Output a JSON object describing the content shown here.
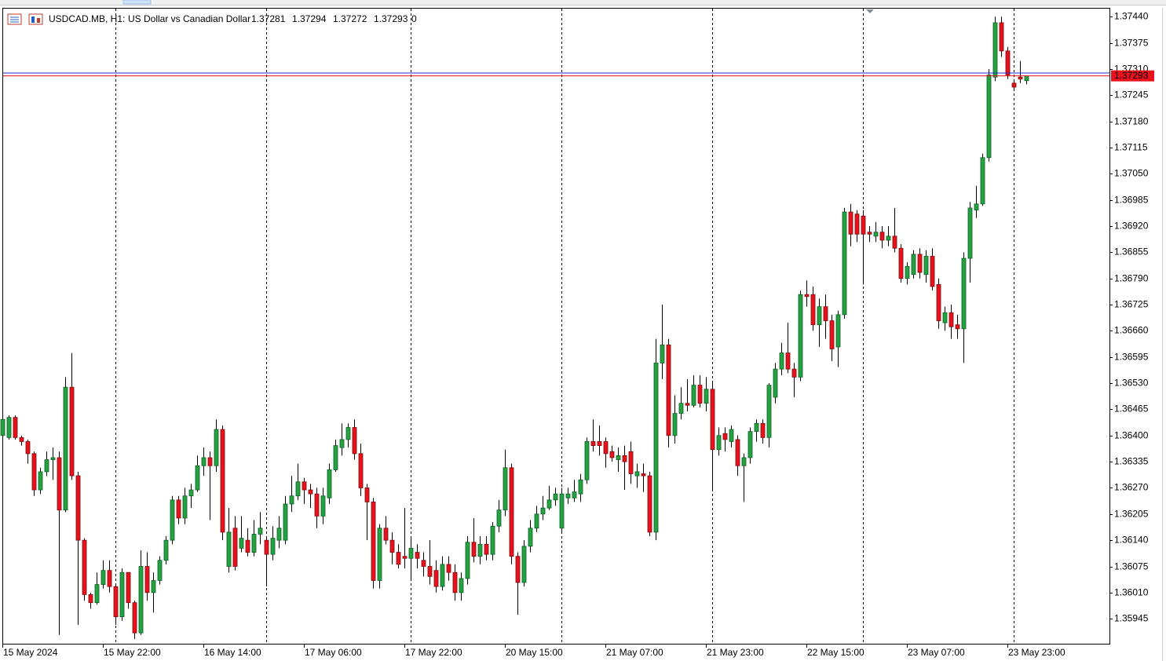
{
  "chart_data": {
    "type": "candlestick",
    "symbol": "USDCAD.MB, H1:",
    "description": "US Dollar vs Canadian Dollar",
    "header_extra": 0,
    "up_color": "#26a245",
    "down_color": "#e8111c",
    "ask_line": 1.373,
    "ask_color": "#1f2ed8",
    "bid_color": "#e8111c",
    "ylim": [
      1.35883,
      1.37458
    ],
    "yticks": [
      {
        "value": 1.3744,
        "label": "1.37440"
      },
      {
        "value": 1.37375,
        "label": "1.37375"
      },
      {
        "value": 1.3731,
        "label": "1.37310"
      },
      {
        "value": 1.37245,
        "label": "1.37245"
      },
      {
        "value": 1.3718,
        "label": "1.37180"
      },
      {
        "value": 1.37115,
        "label": "1.37115"
      },
      {
        "value": 1.3705,
        "label": "1.37050"
      },
      {
        "value": 1.36985,
        "label": "1.36985"
      },
      {
        "value": 1.3692,
        "label": "1.36920"
      },
      {
        "value": 1.36855,
        "label": "1.36855"
      },
      {
        "value": 1.3679,
        "label": "1.36790"
      },
      {
        "value": 1.36725,
        "label": "1.36725"
      },
      {
        "value": 1.3666,
        "label": "1.36660"
      },
      {
        "value": 1.36595,
        "label": "1.36595"
      },
      {
        "value": 1.3653,
        "label": "1.36530"
      },
      {
        "value": 1.36465,
        "label": "1.36465"
      },
      {
        "value": 1.364,
        "label": "1.36400"
      },
      {
        "value": 1.36335,
        "label": "1.36335"
      },
      {
        "value": 1.3627,
        "label": "1.36270"
      },
      {
        "value": 1.36205,
        "label": "1.36205"
      },
      {
        "value": 1.3614,
        "label": "1.36140"
      },
      {
        "value": 1.36075,
        "label": "1.36075"
      },
      {
        "value": 1.3601,
        "label": "1.36010"
      },
      {
        "value": 1.35945,
        "label": "1.35945"
      }
    ],
    "categories": [
      "15 May 2024",
      null,
      null,
      null,
      null,
      null,
      null,
      null,
      null,
      null,
      null,
      null,
      null,
      null,
      null,
      null,
      "15 May 22:00",
      null,
      null,
      null,
      null,
      null,
      null,
      null,
      null,
      null,
      null,
      null,
      null,
      null,
      null,
      null,
      "16 May 14:00",
      null,
      null,
      null,
      null,
      null,
      null,
      null,
      null,
      null,
      null,
      null,
      null,
      null,
      null,
      null,
      "17 May 06:00",
      null,
      null,
      null,
      null,
      null,
      null,
      null,
      null,
      null,
      null,
      null,
      null,
      null,
      null,
      null,
      "17 May 22:00",
      null,
      null,
      null,
      null,
      null,
      null,
      null,
      null,
      null,
      null,
      null,
      null,
      null,
      null,
      null,
      "20 May 15:00",
      null,
      null,
      null,
      null,
      null,
      null,
      null,
      null,
      null,
      null,
      null,
      null,
      null,
      null,
      null,
      "21 May 07:00",
      null,
      null,
      null,
      null,
      null,
      null,
      null,
      null,
      null,
      null,
      null,
      null,
      null,
      null,
      null,
      "21 May 23:00",
      null,
      null,
      null,
      null,
      null,
      null,
      null,
      null,
      null,
      null,
      null,
      null,
      null,
      null,
      null,
      "22 May 15:00",
      null,
      null,
      null,
      null,
      null,
      null,
      null,
      null,
      null,
      null,
      null,
      null,
      null,
      null,
      null,
      "23 May 07:00",
      null,
      null,
      null,
      null,
      null,
      null,
      null,
      null,
      null,
      null,
      null,
      null,
      null,
      null,
      null,
      "23 May 23:00",
      null,
      null,
      null
    ],
    "open": [
      1.364,
      1.36395,
      1.36445,
      1.36395,
      1.36385,
      1.36355,
      1.36265,
      1.3631,
      1.3634,
      1.36345,
      1.36215,
      1.3652,
      1.363,
      1.3614,
      1.36005,
      1.35985,
      1.3603,
      1.36065,
      1.36025,
      1.3595,
      1.3606,
      1.35985,
      1.3591,
      1.36075,
      1.3601,
      1.3604,
      1.3609,
      1.3614,
      1.3624,
      1.36195,
      1.3625,
      1.36265,
      1.36325,
      1.36345,
      1.36325,
      1.36415,
      1.36075,
      1.3617,
      1.3612,
      1.3614,
      1.3611,
      1.36155,
      1.3614,
      1.36105,
      1.3614,
      1.3614,
      1.3623,
      1.3625,
      1.36285,
      1.36265,
      1.36255,
      1.362,
      1.36245,
      1.36315,
      1.3637,
      1.3639,
      1.3642,
      1.36355,
      1.3627,
      1.36235,
      1.3604,
      1.3617,
      1.3614,
      1.3611,
      1.361,
      1.36095,
      1.3611,
      1.3609,
      1.36075,
      1.36065,
      1.36025,
      1.3608,
      1.3606,
      1.3601,
      1.36045,
      1.36135,
      1.361,
      1.3613,
      1.36105,
      1.36175,
      1.36215,
      1.3632,
      1.361,
      1.36035,
      1.36125,
      1.3617,
      1.36205,
      1.3622,
      1.3624,
      1.3617,
      1.36245,
      1.36245,
      1.36255,
      1.3629,
      1.36385,
      1.36385,
      1.36385,
      1.3636,
      1.3634,
      1.3635,
      1.3636,
      1.363,
      1.36305,
      1.363,
      1.3616,
      1.3658,
      1.36625,
      1.364,
      1.36455,
      1.3648,
      1.36475,
      1.36525,
      1.3648,
      1.36515,
      1.36365,
      1.36405,
      1.36385,
      1.3639,
      1.36325,
      1.36345,
      1.3641,
      1.3643,
      1.36395,
      1.36495,
      1.36565,
      1.36605,
      1.36565,
      1.36545,
      1.3675,
      1.3675,
      1.36675,
      1.3672,
      1.36685,
      1.3662,
      1.367,
      1.36955,
      1.3695,
      1.36945,
      1.36905,
      1.36895,
      1.36905,
      1.36885,
      1.36895,
      1.36865,
      1.3679,
      1.368,
      1.3685,
      1.368,
      1.36845,
      1.36775,
      1.3668,
      1.36705,
      1.36675,
      1.36665,
      1.3684,
      1.3696,
      1.36975,
      1.3709,
      1.3729,
      1.37425,
      1.37355,
      1.37275,
      1.3729,
      1.37281
    ],
    "high": [
      1.3645,
      1.3645,
      1.3645,
      1.364,
      1.3639,
      1.3636,
      1.3632,
      1.3636,
      1.3637,
      1.3636,
      1.36545,
      1.36605,
      1.3631,
      1.36145,
      1.3601,
      1.3606,
      1.3609,
      1.3609,
      1.3603,
      1.3607,
      1.3606,
      1.3599,
      1.36115,
      1.3611,
      1.3606,
      1.361,
      1.3615,
      1.3625,
      1.3625,
      1.3627,
      1.3628,
      1.3635,
      1.3637,
      1.3636,
      1.3644,
      1.36425,
      1.3622,
      1.362,
      1.362,
      1.3617,
      1.3619,
      1.3621,
      1.3615,
      1.36175,
      1.362,
      1.3625,
      1.363,
      1.3633,
      1.36295,
      1.3628,
      1.3627,
      1.3627,
      1.3633,
      1.3639,
      1.3643,
      1.3643,
      1.3644,
      1.3638,
      1.3628,
      1.36245,
      1.3618,
      1.362,
      1.3616,
      1.3613,
      1.3622,
      1.3615,
      1.3613,
      1.3611,
      1.3614,
      1.3609,
      1.361,
      1.361,
      1.3608,
      1.3606,
      1.3615,
      1.36195,
      1.3615,
      1.3615,
      1.36185,
      1.3624,
      1.36365,
      1.3633,
      1.3611,
      1.3614,
      1.3619,
      1.36225,
      1.3625,
      1.36275,
      1.3627,
      1.3627,
      1.3627,
      1.3629,
      1.36305,
      1.36395,
      1.3644,
      1.36425,
      1.36395,
      1.36375,
      1.3637,
      1.36375,
      1.36385,
      1.3633,
      1.3633,
      1.3631,
      1.3664,
      1.36725,
      1.3664,
      1.365,
      1.3652,
      1.3654,
      1.3655,
      1.3655,
      1.36545,
      1.3653,
      1.3642,
      1.3642,
      1.36425,
      1.364,
      1.36355,
      1.3642,
      1.3644,
      1.3644,
      1.3653,
      1.3658,
      1.3663,
      1.3668,
      1.3658,
      1.3676,
      1.36785,
      1.3677,
      1.3674,
      1.3675,
      1.367,
      1.3671,
      1.36965,
      1.36975,
      1.3696,
      1.3696,
      1.3692,
      1.3693,
      1.3692,
      1.3692,
      1.36965,
      1.36875,
      1.3683,
      1.3686,
      1.36865,
      1.3686,
      1.36865,
      1.3679,
      1.3672,
      1.36725,
      1.367,
      1.36855,
      1.3698,
      1.3702,
      1.371,
      1.3731,
      1.3744,
      1.3744,
      1.37365,
      1.3728,
      1.3733,
      1.37294
    ],
    "low": [
      1.3639,
      1.3639,
      1.3639,
      1.36375,
      1.3633,
      1.3625,
      1.36255,
      1.363,
      1.3629,
      1.35905,
      1.3621,
      1.3629,
      1.3593,
      1.3599,
      1.3597,
      1.3598,
      1.3602,
      1.3601,
      1.3593,
      1.3594,
      1.3597,
      1.35895,
      1.35905,
      1.3599,
      1.3596,
      1.3603,
      1.3608,
      1.3613,
      1.3618,
      1.3618,
      1.3622,
      1.3626,
      1.363,
      1.3619,
      1.3631,
      1.3614,
      1.3606,
      1.36065,
      1.3611,
      1.361,
      1.361,
      1.3613,
      1.36025,
      1.3609,
      1.3612,
      1.3613,
      1.3621,
      1.3624,
      1.3623,
      1.3622,
      1.3617,
      1.3618,
      1.3623,
      1.3631,
      1.3635,
      1.3637,
      1.3634,
      1.3625,
      1.3614,
      1.3602,
      1.3602,
      1.3613,
      1.3608,
      1.3607,
      1.3607,
      1.3604,
      1.3607,
      1.3605,
      1.3603,
      1.3601,
      1.36015,
      1.3604,
      1.3599,
      1.3599,
      1.3603,
      1.36085,
      1.3608,
      1.3609,
      1.3609,
      1.3616,
      1.362,
      1.3608,
      1.35955,
      1.36025,
      1.3611,
      1.3616,
      1.3619,
      1.36215,
      1.36225,
      1.3616,
      1.3623,
      1.36235,
      1.36235,
      1.3628,
      1.3636,
      1.3635,
      1.3632,
      1.36335,
      1.3631,
      1.36265,
      1.3628,
      1.3627,
      1.3626,
      1.3615,
      1.3614,
      1.3654,
      1.3637,
      1.3638,
      1.3644,
      1.3646,
      1.3647,
      1.3647,
      1.3646,
      1.36265,
      1.3635,
      1.3636,
      1.3637,
      1.363,
      1.36235,
      1.3633,
      1.36385,
      1.3638,
      1.3637,
      1.3648,
      1.3655,
      1.36555,
      1.36495,
      1.36535,
      1.3672,
      1.3666,
      1.3662,
      1.3664,
      1.36585,
      1.3657,
      1.3669,
      1.3687,
      1.3688,
      1.36775,
      1.3688,
      1.3688,
      1.36865,
      1.3687,
      1.36855,
      1.3678,
      1.36775,
      1.3679,
      1.3679,
      1.3678,
      1.3676,
      1.36665,
      1.3666,
      1.3664,
      1.3664,
      1.3658,
      1.3678,
      1.3694,
      1.3697,
      1.3708,
      1.3728,
      1.3734,
      1.37285,
      1.3726,
      1.37275,
      1.37272
    ],
    "close": [
      1.3644,
      1.36445,
      1.36395,
      1.36385,
      1.36355,
      1.36265,
      1.3631,
      1.3634,
      1.36345,
      1.36215,
      1.3652,
      1.363,
      1.3614,
      1.36005,
      1.35985,
      1.3603,
      1.36065,
      1.36025,
      1.3595,
      1.3606,
      1.35985,
      1.3591,
      1.36075,
      1.3601,
      1.3604,
      1.3609,
      1.3614,
      1.3624,
      1.36195,
      1.3625,
      1.36265,
      1.36325,
      1.36345,
      1.36325,
      1.36415,
      1.3616,
      1.3616,
      1.36075,
      1.36145,
      1.3611,
      1.36155,
      1.3617,
      1.36105,
      1.36145,
      1.3617,
      1.3623,
      1.3625,
      1.36285,
      1.36265,
      1.36255,
      1.362,
      1.3625,
      1.36315,
      1.36375,
      1.3639,
      1.3642,
      1.36355,
      1.3627,
      1.36235,
      1.3604,
      1.3617,
      1.3614,
      1.3611,
      1.3608,
      1.36095,
      1.3612,
      1.36095,
      1.36075,
      1.3605,
      1.36025,
      1.3608,
      1.3606,
      1.3601,
      1.36045,
      1.36135,
      1.361,
      1.3613,
      1.36105,
      1.36175,
      1.36215,
      1.3632,
      1.361,
      1.36035,
      1.36125,
      1.3617,
      1.36205,
      1.3622,
      1.3624,
      1.36255,
      1.36255,
      1.36255,
      1.3626,
      1.3629,
      1.36385,
      1.36375,
      1.36375,
      1.36355,
      1.36345,
      1.3635,
      1.36335,
      1.36305,
      1.3631,
      1.363,
      1.3616,
      1.3658,
      1.36625,
      1.364,
      1.36455,
      1.3648,
      1.36475,
      1.36525,
      1.3648,
      1.36515,
      1.36365,
      1.364,
      1.3639,
      1.36415,
      1.36325,
      1.36345,
      1.3641,
      1.3643,
      1.36395,
      1.36525,
      1.36565,
      1.36605,
      1.36565,
      1.36545,
      1.3675,
      1.36745,
      1.36675,
      1.3672,
      1.36685,
      1.36615,
      1.367,
      1.36955,
      1.369,
      1.369,
      1.369,
      1.369,
      1.36905,
      1.36885,
      1.36895,
      1.36865,
      1.3679,
      1.3682,
      1.3685,
      1.36805,
      1.36845,
      1.3677,
      1.36685,
      1.36705,
      1.3667,
      1.36665,
      1.3684,
      1.36965,
      1.36975,
      1.3709,
      1.37295,
      1.37425,
      1.37355,
      1.37295,
      1.37265,
      1.37285,
      1.37293
    ]
  }
}
